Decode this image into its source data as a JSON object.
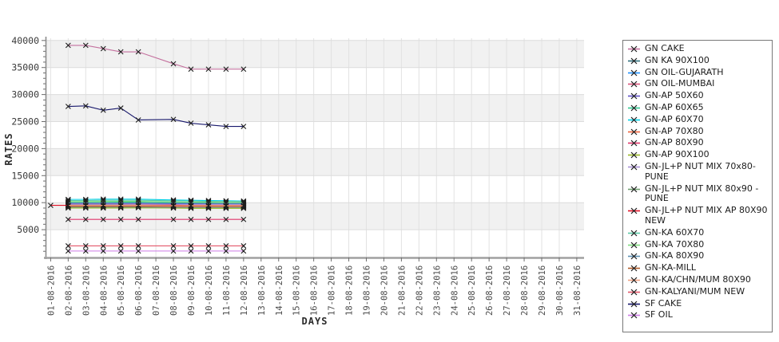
{
  "chart_data": {
    "type": "line",
    "title": "",
    "xlabel": "DAYS",
    "ylabel": "RATES",
    "ylim": [
      0,
      40400
    ],
    "y_tick_step": 5000,
    "y_minor_step": 1000,
    "y_tick_labels": [
      "5000",
      "10000",
      "15000",
      "20000",
      "25000",
      "30000",
      "35000",
      "40000"
    ],
    "grid": true,
    "legend_position": "right",
    "marker": "x",
    "plot_bands": [
      [
        5000,
        10000
      ],
      [
        15000,
        20000
      ],
      [
        25000,
        30000
      ],
      [
        35000,
        40000
      ]
    ],
    "x_ticks": [
      "01-08-2016",
      "02-08-2016",
      "03-08-2016",
      "04-08-2016",
      "05-08-2016",
      "06-08-2016",
      "07-08-2016",
      "08-08-2016",
      "09-08-2016",
      "10-08-2016",
      "11-08-2016",
      "12-08-2016",
      "13-08-2016",
      "14-08-2016",
      "15-08-2016",
      "16-08-2016",
      "17-08-2016",
      "18-08-2016",
      "19-08-2016",
      "20-08-2016",
      "21-08-2016",
      "22-08-2016",
      "23-08-2016",
      "24-08-2016",
      "25-08-2016",
      "26-08-2016",
      "27-08-2016",
      "28-08-2016",
      "29-08-2016",
      "30-08-2016",
      "31-08-2016"
    ],
    "x": [
      "02-08-2016",
      "03-08-2016",
      "04-08-2016",
      "05-08-2016",
      "06-08-2016",
      "08-08-2016",
      "09-08-2016",
      "10-08-2016",
      "11-08-2016",
      "12-08-2016"
    ],
    "series": [
      {
        "name": "GN CAKE",
        "color": "#c4709e",
        "values": [
          39100,
          39100,
          38500,
          37900,
          37900,
          35700,
          34700,
          34700,
          34700,
          34700
        ]
      },
      {
        "name": "GN KA 90X100",
        "color": "#2f6f7e",
        "values": [
          9600,
          9600,
          9600,
          9600,
          9600,
          9600,
          9600,
          9550,
          9550,
          9550
        ]
      },
      {
        "name": "GN OIL-GUJARATH",
        "color": "#1e90ff",
        "values": [
          9900,
          9900,
          9900,
          9900,
          9900,
          9850,
          9850,
          9800,
          9800,
          9800
        ]
      },
      {
        "name": "GN OIL-MUMBAI",
        "color": "#d9537a",
        "values": [
          9300,
          9300,
          9300,
          9300,
          9300,
          9250,
          9250,
          9250,
          9250,
          9250
        ]
      },
      {
        "name": "GN-AP 50X60",
        "color": "#5f51c9",
        "values": [
          9800,
          9800,
          9800,
          9800,
          9800,
          9750,
          9750,
          9750,
          9700,
          9700
        ]
      },
      {
        "name": "GN-AP 60X65",
        "color": "#2fc98f",
        "values": [
          10050,
          10050,
          10050,
          10100,
          10100,
          10000,
          10000,
          9950,
          9950,
          9950
        ]
      },
      {
        "name": "GN-AP 60X70",
        "color": "#00d0e6",
        "values": [
          10600,
          10600,
          10650,
          10650,
          10650,
          10500,
          10450,
          10400,
          10350,
          10300
        ]
      },
      {
        "name": "GN-AP 70X80",
        "color": "#f0633c",
        "values": [
          9550,
          9550,
          9550,
          9550,
          9600,
          9550,
          9500,
          9500,
          9500,
          9500
        ]
      },
      {
        "name": "GN-AP 80X90",
        "color": "#e0356a",
        "values": [
          6900,
          6900,
          6900,
          6900,
          6900,
          6900,
          6900,
          6900,
          6900,
          6900
        ]
      },
      {
        "name": "GN-AP 90X100",
        "color": "#9ab825",
        "values": [
          9000,
          9000,
          9000,
          9000,
          9050,
          9000,
          8950,
          8950,
          8950,
          8950
        ]
      },
      {
        "name": "GN-JL+P NUT MIX 70x80-PUNE",
        "color": "#a98fd6",
        "values": [
          9700,
          9700,
          9700,
          9700,
          9700,
          9650,
          9650,
          9650,
          9650,
          9650
        ]
      },
      {
        "name": "GN-JL+P NUT MIX 80x90 - PUNE",
        "color": "#6f9e6f",
        "values": [
          9150,
          9150,
          9150,
          9150,
          9150,
          9100,
          9100,
          9100,
          9100,
          9100
        ]
      },
      {
        "name": "GN-JL+P NUT MIX AP 80X90 NEW",
        "color": "#e31226",
        "x": [
          "01-08-2016",
          "02-08-2016",
          "03-08-2016",
          "04-08-2016",
          "05-08-2016",
          "06-08-2016",
          "08-08-2016",
          "09-08-2016",
          "10-08-2016",
          "11-08-2016",
          "12-08-2016"
        ],
        "values": [
          9500,
          9500,
          9500,
          9500,
          9500,
          9500,
          9550,
          9450,
          9450,
          9400,
          9400
        ]
      },
      {
        "name": "GN-KA 60X70",
        "color": "#59c9a5",
        "values": [
          10400,
          10400,
          10450,
          10450,
          10450,
          10350,
          10300,
          10250,
          10250,
          10200
        ]
      },
      {
        "name": "GN-KA 70X80",
        "color": "#7ddc7d",
        "values": [
          10200,
          10200,
          10250,
          10250,
          10250,
          10150,
          10100,
          10100,
          10050,
          10050
        ]
      },
      {
        "name": "GN-KA 80X90",
        "color": "#5b8fb4",
        "values": [
          9950,
          9950,
          9950,
          9950,
          9950,
          9900,
          9900,
          9850,
          9850,
          9850
        ]
      },
      {
        "name": "GN-KA-MILL",
        "color": "#b05a28",
        "values": [
          9400,
          9400,
          9400,
          9400,
          9400,
          9350,
          9350,
          9350,
          9350,
          9350
        ]
      },
      {
        "name": "GN-KA/CHN/MUM 80X90",
        "color": "#efa080",
        "values": [
          9500,
          9500,
          9500,
          9500,
          9500,
          9450,
          9450,
          9450,
          9450,
          9450
        ]
      },
      {
        "name": "GN-KALYANI/MUM NEW",
        "color": "#e4586a",
        "values": [
          2000,
          2000,
          2000,
          2000,
          2000,
          2000,
          2000,
          2000,
          2000,
          2000
        ]
      },
      {
        "name": "SF CAKE",
        "color": "#17176b",
        "values": [
          27800,
          27900,
          27100,
          27500,
          25300,
          25400,
          24700,
          24400,
          24100,
          24100
        ]
      },
      {
        "name": "SF OIL",
        "color": "#cd7ae6",
        "values": [
          1050,
          1050,
          1050,
          1050,
          1050,
          1050,
          1050,
          1050,
          1050,
          1050
        ]
      }
    ]
  }
}
